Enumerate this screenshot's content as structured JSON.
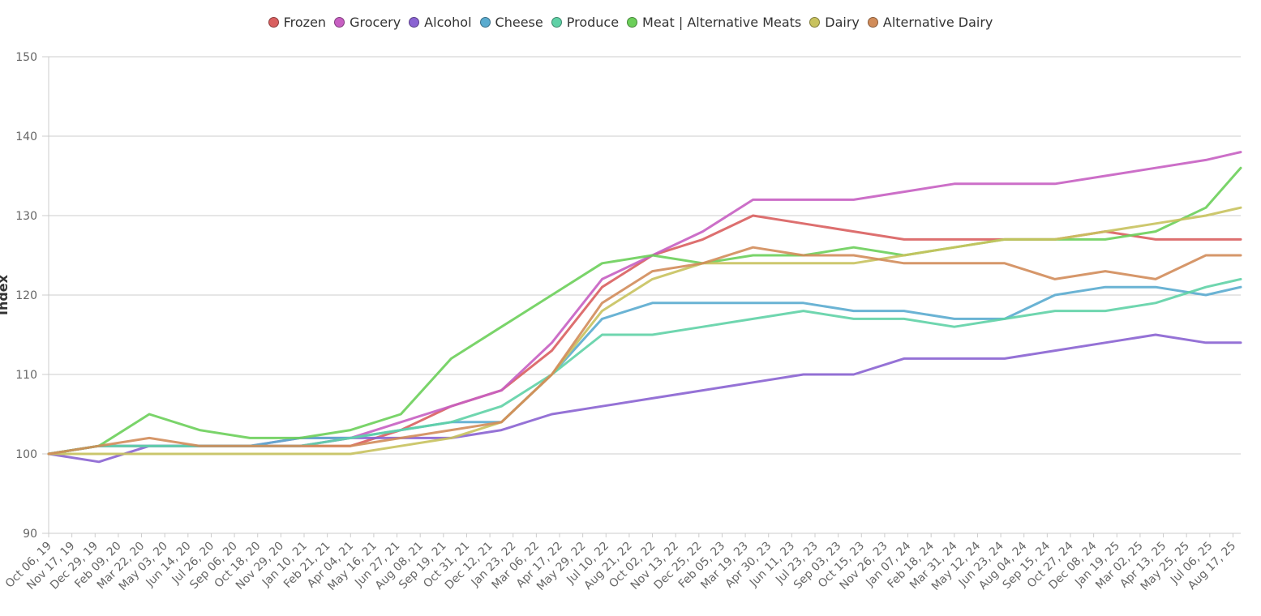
{
  "chart_data": {
    "type": "line",
    "title": "",
    "xlabel": "",
    "ylabel": "Index",
    "ylim": [
      90,
      150
    ],
    "yticks": [
      90,
      100,
      110,
      120,
      130,
      140,
      150
    ],
    "grid": "horizontal",
    "legend_position": "top-center",
    "x_range": [
      "2019-10-06",
      "2025-08-31"
    ],
    "x_tick_labels": [
      "Oct 06, 19",
      "Nov 17, 19",
      "Dec 29, 19",
      "Feb 09, 20",
      "Mar 22, 20",
      "May 03, 20",
      "Jun 14, 20",
      "Jul 26, 20",
      "Sep 06, 20",
      "Oct 18, 20",
      "Nov 29, 20",
      "Jan 10, 21",
      "Feb 21, 21",
      "Apr 04, 21",
      "May 16, 21",
      "Jun 27, 21",
      "Aug 08, 21",
      "Sep 19, 21",
      "Oct 31, 21",
      "Dec 12, 21",
      "Jan 23, 22",
      "Mar 06, 22",
      "Apr 17, 22",
      "May 29, 22",
      "Jul 10, 22",
      "Aug 21, 22",
      "Oct 02, 22",
      "Nov 13, 22",
      "Dec 25, 22",
      "Feb 05, 23",
      "Mar 19, 23",
      "Apr 30, 23",
      "Jun 11, 23",
      "Jul 23, 23",
      "Sep 03, 23",
      "Oct 15, 23",
      "Nov 26, 23",
      "Jan 07, 24",
      "Feb 18, 24",
      "Mar 31, 24",
      "May 12, 24",
      "Jun 23, 24",
      "Aug 04, 24",
      "Sep 15, 24",
      "Oct 27, 24",
      "Dec 08, 24",
      "Jan 19, 25",
      "Mar 02, 25",
      "Apr 13, 25",
      "May 25, 25",
      "Jul 06, 25",
      "Aug 17, 25"
    ],
    "x": [
      "2019-10-06",
      "2020-01-05",
      "2020-04-05",
      "2020-07-05",
      "2020-10-04",
      "2021-01-03",
      "2021-04-04",
      "2021-07-04",
      "2021-10-03",
      "2022-01-02",
      "2022-04-03",
      "2022-07-03",
      "2022-10-02",
      "2023-01-01",
      "2023-04-02",
      "2023-07-02",
      "2023-10-01",
      "2023-12-31",
      "2024-03-31",
      "2024-06-30",
      "2024-09-29",
      "2024-12-29",
      "2025-03-30",
      "2025-06-29",
      "2025-08-31"
    ],
    "series": [
      {
        "name": "Frozen",
        "color": "#d95f5f",
        "values": [
          100,
          101,
          101,
          101,
          101,
          101,
          101,
          103,
          106,
          108,
          113,
          121,
          125,
          127,
          130,
          129,
          128,
          127,
          127,
          127,
          127,
          128,
          127,
          127,
          127
        ]
      },
      {
        "name": "Grocery",
        "color": "#c75fc2",
        "values": [
          100,
          101,
          101,
          101,
          101,
          102,
          102,
          104,
          106,
          108,
          114,
          122,
          125,
          128,
          132,
          132,
          132,
          133,
          134,
          134,
          134,
          135,
          136,
          137,
          138
        ]
      },
      {
        "name": "Alcohol",
        "color": "#8a63d2",
        "values": [
          100,
          99,
          101,
          101,
          101,
          101,
          102,
          102,
          102,
          103,
          105,
          106,
          107,
          108,
          109,
          110,
          110,
          112,
          112,
          112,
          113,
          114,
          115,
          114,
          114
        ]
      },
      {
        "name": "Cheese",
        "color": "#5aabcf",
        "values": [
          100,
          101,
          101,
          101,
          101,
          102,
          102,
          103,
          104,
          104,
          110,
          117,
          119,
          119,
          119,
          119,
          118,
          118,
          117,
          117,
          120,
          121,
          121,
          120,
          121
        ]
      },
      {
        "name": "Produce",
        "color": "#5fd1a6",
        "values": [
          100,
          101,
          101,
          101,
          101,
          101,
          102,
          103,
          104,
          106,
          110,
          115,
          115,
          116,
          117,
          118,
          117,
          117,
          116,
          117,
          118,
          118,
          119,
          121,
          122
        ]
      },
      {
        "name": "Meat | Alternative Meats",
        "color": "#6ccf5a",
        "values": [
          100,
          101,
          105,
          103,
          102,
          102,
          103,
          105,
          112,
          116,
          120,
          124,
          125,
          124,
          125,
          125,
          126,
          125,
          126,
          127,
          127,
          127,
          128,
          131,
          136
        ]
      },
      {
        "name": "Dairy",
        "color": "#c8c25e",
        "values": [
          100,
          100,
          100,
          100,
          100,
          100,
          100,
          101,
          102,
          104,
          110,
          118,
          122,
          124,
          124,
          124,
          124,
          125,
          126,
          127,
          127,
          128,
          129,
          130,
          131
        ]
      },
      {
        "name": "Alternative Dairy",
        "color": "#d18c5a",
        "values": [
          100,
          101,
          102,
          101,
          101,
          101,
          101,
          102,
          103,
          104,
          110,
          119,
          123,
          124,
          126,
          125,
          125,
          124,
          124,
          124,
          122,
          123,
          122,
          125,
          125
        ]
      }
    ]
  }
}
